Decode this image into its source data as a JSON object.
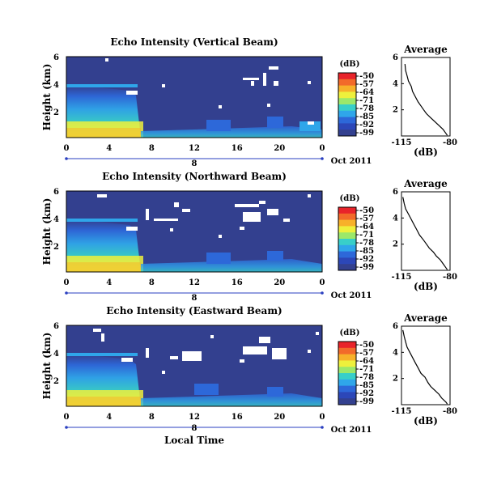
{
  "figure": {
    "x_axis_label": "Local Time",
    "date_label": "Oct 2011",
    "x_ticks": [
      "0",
      "4",
      "8",
      "12",
      "16",
      "20",
      "0"
    ],
    "y_ticks": [
      "6",
      "4",
      "2"
    ],
    "y_axis_label": "Height (km)",
    "colorbar_unit": "(dB)",
    "colorbar_ticks": [
      "-50",
      "-57",
      "-64",
      "-71",
      "-78",
      "-85",
      "-92",
      "-99"
    ],
    "colorbar_colors": [
      "#e8232a",
      "#f26a2a",
      "#f7b12a",
      "#eef03c",
      "#9ce86a",
      "#38cfc9",
      "#2fa6ea",
      "#2d68d9",
      "#2c47b8",
      "#33408f"
    ],
    "background_color": "#33408f",
    "date_bar_label": "8",
    "avg_title": "Average",
    "avg_x_ticks": [
      "-115",
      "-80"
    ],
    "avg_y_ticks": [
      "6",
      "4",
      "2"
    ],
    "avg_x_label": "(dB)"
  },
  "chart_data": [
    {
      "type": "heatmap",
      "title": "Echo Intensity (Vertical Beam)",
      "xlabel": "",
      "ylabel": "Height (km)",
      "xlim": [
        0,
        24
      ],
      "ylim": [
        0,
        6
      ],
      "clim": [
        -99,
        -50
      ],
      "colorbar_label": "(dB)",
      "colorbar_ticks": [
        -50,
        -57,
        -64,
        -71,
        -78,
        -85,
        -92,
        -99
      ],
      "features": {
        "low_layer_top_km": [
          4.0,
          4.0,
          4.0,
          4.1,
          4.0,
          4.1,
          3.9
        ],
        "low_layer_hours": [
          0,
          1,
          2,
          3,
          4,
          5,
          6
        ]
      }
    },
    {
      "type": "heatmap",
      "title": "Echo Intensity (Northward Beam)",
      "xlabel": "",
      "ylabel": "Height (km)",
      "xlim": [
        0,
        24
      ],
      "ylim": [
        0,
        6
      ],
      "clim": [
        -99,
        -50
      ],
      "colorbar_label": "(dB)",
      "colorbar_ticks": [
        -50,
        -57,
        -64,
        -71,
        -78,
        -85,
        -92,
        -99
      ]
    },
    {
      "type": "heatmap",
      "title": "Echo Intensity (Eastward Beam)",
      "xlabel": "Local Time",
      "ylabel": "Height (km)",
      "xlim": [
        0,
        24
      ],
      "ylim": [
        0,
        6
      ],
      "clim": [
        -99,
        -50
      ],
      "colorbar_label": "(dB)",
      "colorbar_ticks": [
        -50,
        -57,
        -64,
        -71,
        -78,
        -85,
        -92,
        -99
      ]
    },
    {
      "type": "line",
      "title": "Average",
      "xlabel": "(dB)",
      "ylabel": "",
      "xlim": [
        -115,
        -80
      ],
      "ylim": [
        0,
        6
      ],
      "series": [
        {
          "x": [
            -112.5,
            -112,
            -111,
            -110,
            -108,
            -107,
            -105,
            -103,
            -101,
            -99,
            -97,
            -94,
            -91,
            -88,
            -85,
            -83,
            -82
          ],
          "y": [
            5.5,
            5.0,
            4.6,
            4.2,
            3.8,
            3.4,
            3.0,
            2.6,
            2.3,
            2.0,
            1.7,
            1.4,
            1.1,
            0.8,
            0.5,
            0.2,
            0.05
          ]
        }
      ]
    },
    {
      "type": "line",
      "title": "Average",
      "xlabel": "(dB)",
      "ylabel": "",
      "xlim": [
        -115,
        -80
      ],
      "ylim": [
        0,
        6
      ],
      "series": [
        {
          "x": [
            -114,
            -113,
            -112,
            -110,
            -108,
            -106,
            -104,
            -102,
            -99,
            -97,
            -95,
            -92,
            -90,
            -87,
            -85,
            -83,
            -82
          ],
          "y": [
            5.6,
            5.1,
            4.7,
            4.3,
            3.9,
            3.5,
            3.1,
            2.7,
            2.3,
            2.0,
            1.7,
            1.4,
            1.1,
            0.8,
            0.5,
            0.2,
            0.05
          ]
        }
      ]
    },
    {
      "type": "line",
      "title": "Average",
      "xlabel": "(dB)",
      "ylabel": "",
      "xlim": [
        -115,
        -80
      ],
      "ylim": [
        0,
        6
      ],
      "series": [
        {
          "x": [
            -114,
            -113,
            -112,
            -111,
            -109,
            -107,
            -105,
            -103,
            -101,
            -98,
            -96,
            -94,
            -91,
            -88,
            -86,
            -83,
            -82
          ],
          "y": [
            5.7,
            5.2,
            4.8,
            4.4,
            4.0,
            3.6,
            3.2,
            2.8,
            2.4,
            2.1,
            1.7,
            1.4,
            1.1,
            0.8,
            0.5,
            0.2,
            0.05
          ]
        }
      ]
    }
  ]
}
